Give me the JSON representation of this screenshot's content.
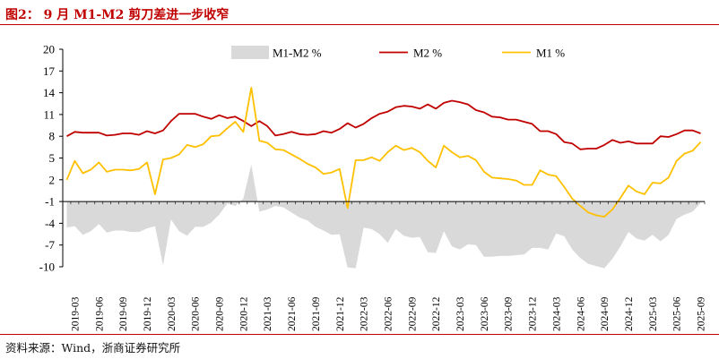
{
  "figure": {
    "title": "图2：  9 月 M1-M2 剪刀差进一步收窄",
    "source": "资料来源：Wind，浙商证券研究所"
  },
  "chart_data": {
    "type": "line",
    "title": "图2：  9 月 M1-M2 剪刀差进一步收窄",
    "xlabel": "",
    "ylabel": "",
    "ylim": [
      -10,
      20
    ],
    "yticks": [
      -10,
      -7,
      -4,
      -1,
      2,
      5,
      8,
      11,
      14,
      17,
      20
    ],
    "x_tick_labels": [
      "2019-03",
      "2019-06",
      "2019-09",
      "2019-12",
      "2020-03",
      "2020-06",
      "2020-09",
      "2020-12",
      "2021-03",
      "2021-06",
      "2021-09",
      "2021-12",
      "2022-03",
      "2022-06",
      "2022-09",
      "2022-12",
      "2023-03",
      "2023-06",
      "2023-09",
      "2023-12",
      "2024-03",
      "2024-06",
      "2024-09",
      "2024-12",
      "2025-03",
      "2025-06",
      "2025-09"
    ],
    "legend_position": "top",
    "grid": false,
    "colors": {
      "M1-M2 %": "#D9D9D9",
      "M2 %": "#C00000",
      "M1 %": "#FFC000"
    },
    "x": [
      "2019-02",
      "2019-03",
      "2019-04",
      "2019-05",
      "2019-06",
      "2019-07",
      "2019-08",
      "2019-09",
      "2019-10",
      "2019-11",
      "2019-12",
      "2020-01",
      "2020-02",
      "2020-03",
      "2020-04",
      "2020-05",
      "2020-06",
      "2020-07",
      "2020-08",
      "2020-09",
      "2020-10",
      "2020-11",
      "2020-12",
      "2021-01",
      "2021-02",
      "2021-03",
      "2021-04",
      "2021-05",
      "2021-06",
      "2021-07",
      "2021-08",
      "2021-09",
      "2021-10",
      "2021-11",
      "2021-12",
      "2022-01",
      "2022-02",
      "2022-03",
      "2022-04",
      "2022-05",
      "2022-06",
      "2022-07",
      "2022-08",
      "2022-09",
      "2022-10",
      "2022-11",
      "2022-12",
      "2023-01",
      "2023-02",
      "2023-03",
      "2023-04",
      "2023-05",
      "2023-06",
      "2023-07",
      "2023-08",
      "2023-09",
      "2023-10",
      "2023-11",
      "2023-12",
      "2024-01",
      "2024-02",
      "2024-03",
      "2024-04",
      "2024-05",
      "2024-06",
      "2024-07",
      "2024-08",
      "2024-09",
      "2024-10",
      "2024-11",
      "2024-12",
      "2025-01",
      "2025-02",
      "2025-03",
      "2025-04",
      "2025-05",
      "2025-06",
      "2025-07",
      "2025-08",
      "2025-09"
    ],
    "series": [
      {
        "name": "M1-M2 %",
        "kind": "area",
        "values": [
          -4.6,
          -4.4,
          -5.6,
          -5.1,
          -4.1,
          -5.3,
          -5.0,
          -5.0,
          -5.2,
          -5.2,
          -4.7,
          -4.4,
          -9.8,
          -3.5,
          -5.1,
          -5.7,
          -4.5,
          -4.5,
          -3.9,
          -2.8,
          -1.3,
          -1.6,
          -0.6,
          4.1,
          -2.4,
          -2.1,
          -1.6,
          -1.8,
          -2.5,
          -3.2,
          -3.6,
          -4.5,
          -5.0,
          -5.6,
          -5.5,
          -10.1,
          -10.2,
          -4.6,
          -4.8,
          -5.5,
          -6.7,
          -4.8,
          -5.7,
          -6.0,
          -5.9,
          -8.0,
          -8.1,
          -5.1,
          -7.2,
          -7.6,
          -6.9,
          -7.0,
          -8.6,
          -8.6,
          -8.5,
          -8.5,
          -8.4,
          -8.3,
          -7.4,
          -7.4,
          -7.6,
          -5.4,
          -5.8,
          -7.6,
          -8.8,
          -9.6,
          -9.9,
          -10.2,
          -8.9,
          -7.2,
          -5.2,
          -6.1,
          -6.4,
          -5.6,
          -6.5,
          -5.6,
          -3.4,
          -2.8,
          -2.4,
          -1.2
        ]
      },
      {
        "name": "M2 %",
        "kind": "line",
        "values": [
          8.0,
          8.6,
          8.5,
          8.5,
          8.5,
          8.1,
          8.2,
          8.4,
          8.4,
          8.2,
          8.7,
          8.4,
          8.8,
          10.1,
          11.1,
          11.1,
          11.1,
          10.7,
          10.4,
          10.9,
          10.5,
          10.7,
          10.1,
          9.4,
          10.1,
          9.4,
          8.1,
          8.3,
          8.6,
          8.3,
          8.2,
          8.3,
          8.7,
          8.5,
          9.0,
          9.8,
          9.2,
          9.7,
          10.5,
          11.1,
          11.4,
          12.0,
          12.2,
          12.1,
          11.8,
          12.4,
          11.8,
          12.6,
          12.9,
          12.7,
          12.4,
          11.6,
          11.3,
          10.7,
          10.6,
          10.3,
          10.3,
          10.0,
          9.7,
          8.7,
          8.7,
          8.3,
          7.2,
          7.0,
          6.2,
          6.3,
          6.3,
          6.8,
          7.5,
          7.1,
          7.3,
          7.0,
          7.0,
          7.0,
          8.0,
          7.9,
          8.3,
          8.8,
          8.8,
          8.4
        ]
      },
      {
        "name": "M1 %",
        "kind": "line",
        "values": [
          2.0,
          4.6,
          2.9,
          3.4,
          4.4,
          3.1,
          3.4,
          3.4,
          3.3,
          3.5,
          4.4,
          0.0,
          4.8,
          5.0,
          5.5,
          6.8,
          6.5,
          6.9,
          8.0,
          8.1,
          9.1,
          10.0,
          8.6,
          14.7,
          7.4,
          7.1,
          6.2,
          6.1,
          5.5,
          4.9,
          4.2,
          3.7,
          2.8,
          3.0,
          3.5,
          -1.9,
          4.7,
          4.7,
          5.1,
          4.6,
          5.8,
          6.7,
          6.1,
          6.4,
          5.8,
          4.6,
          3.7,
          6.7,
          5.8,
          5.1,
          5.3,
          4.7,
          3.1,
          2.3,
          2.2,
          2.1,
          1.9,
          1.3,
          1.3,
          3.3,
          2.7,
          2.5,
          1.0,
          -0.6,
          -1.6,
          -2.5,
          -2.9,
          -3.1,
          -2.1,
          -0.5,
          1.2,
          0.4,
          0.0,
          1.6,
          1.5,
          2.3,
          4.6,
          5.6,
          6.0,
          7.2
        ]
      }
    ]
  }
}
